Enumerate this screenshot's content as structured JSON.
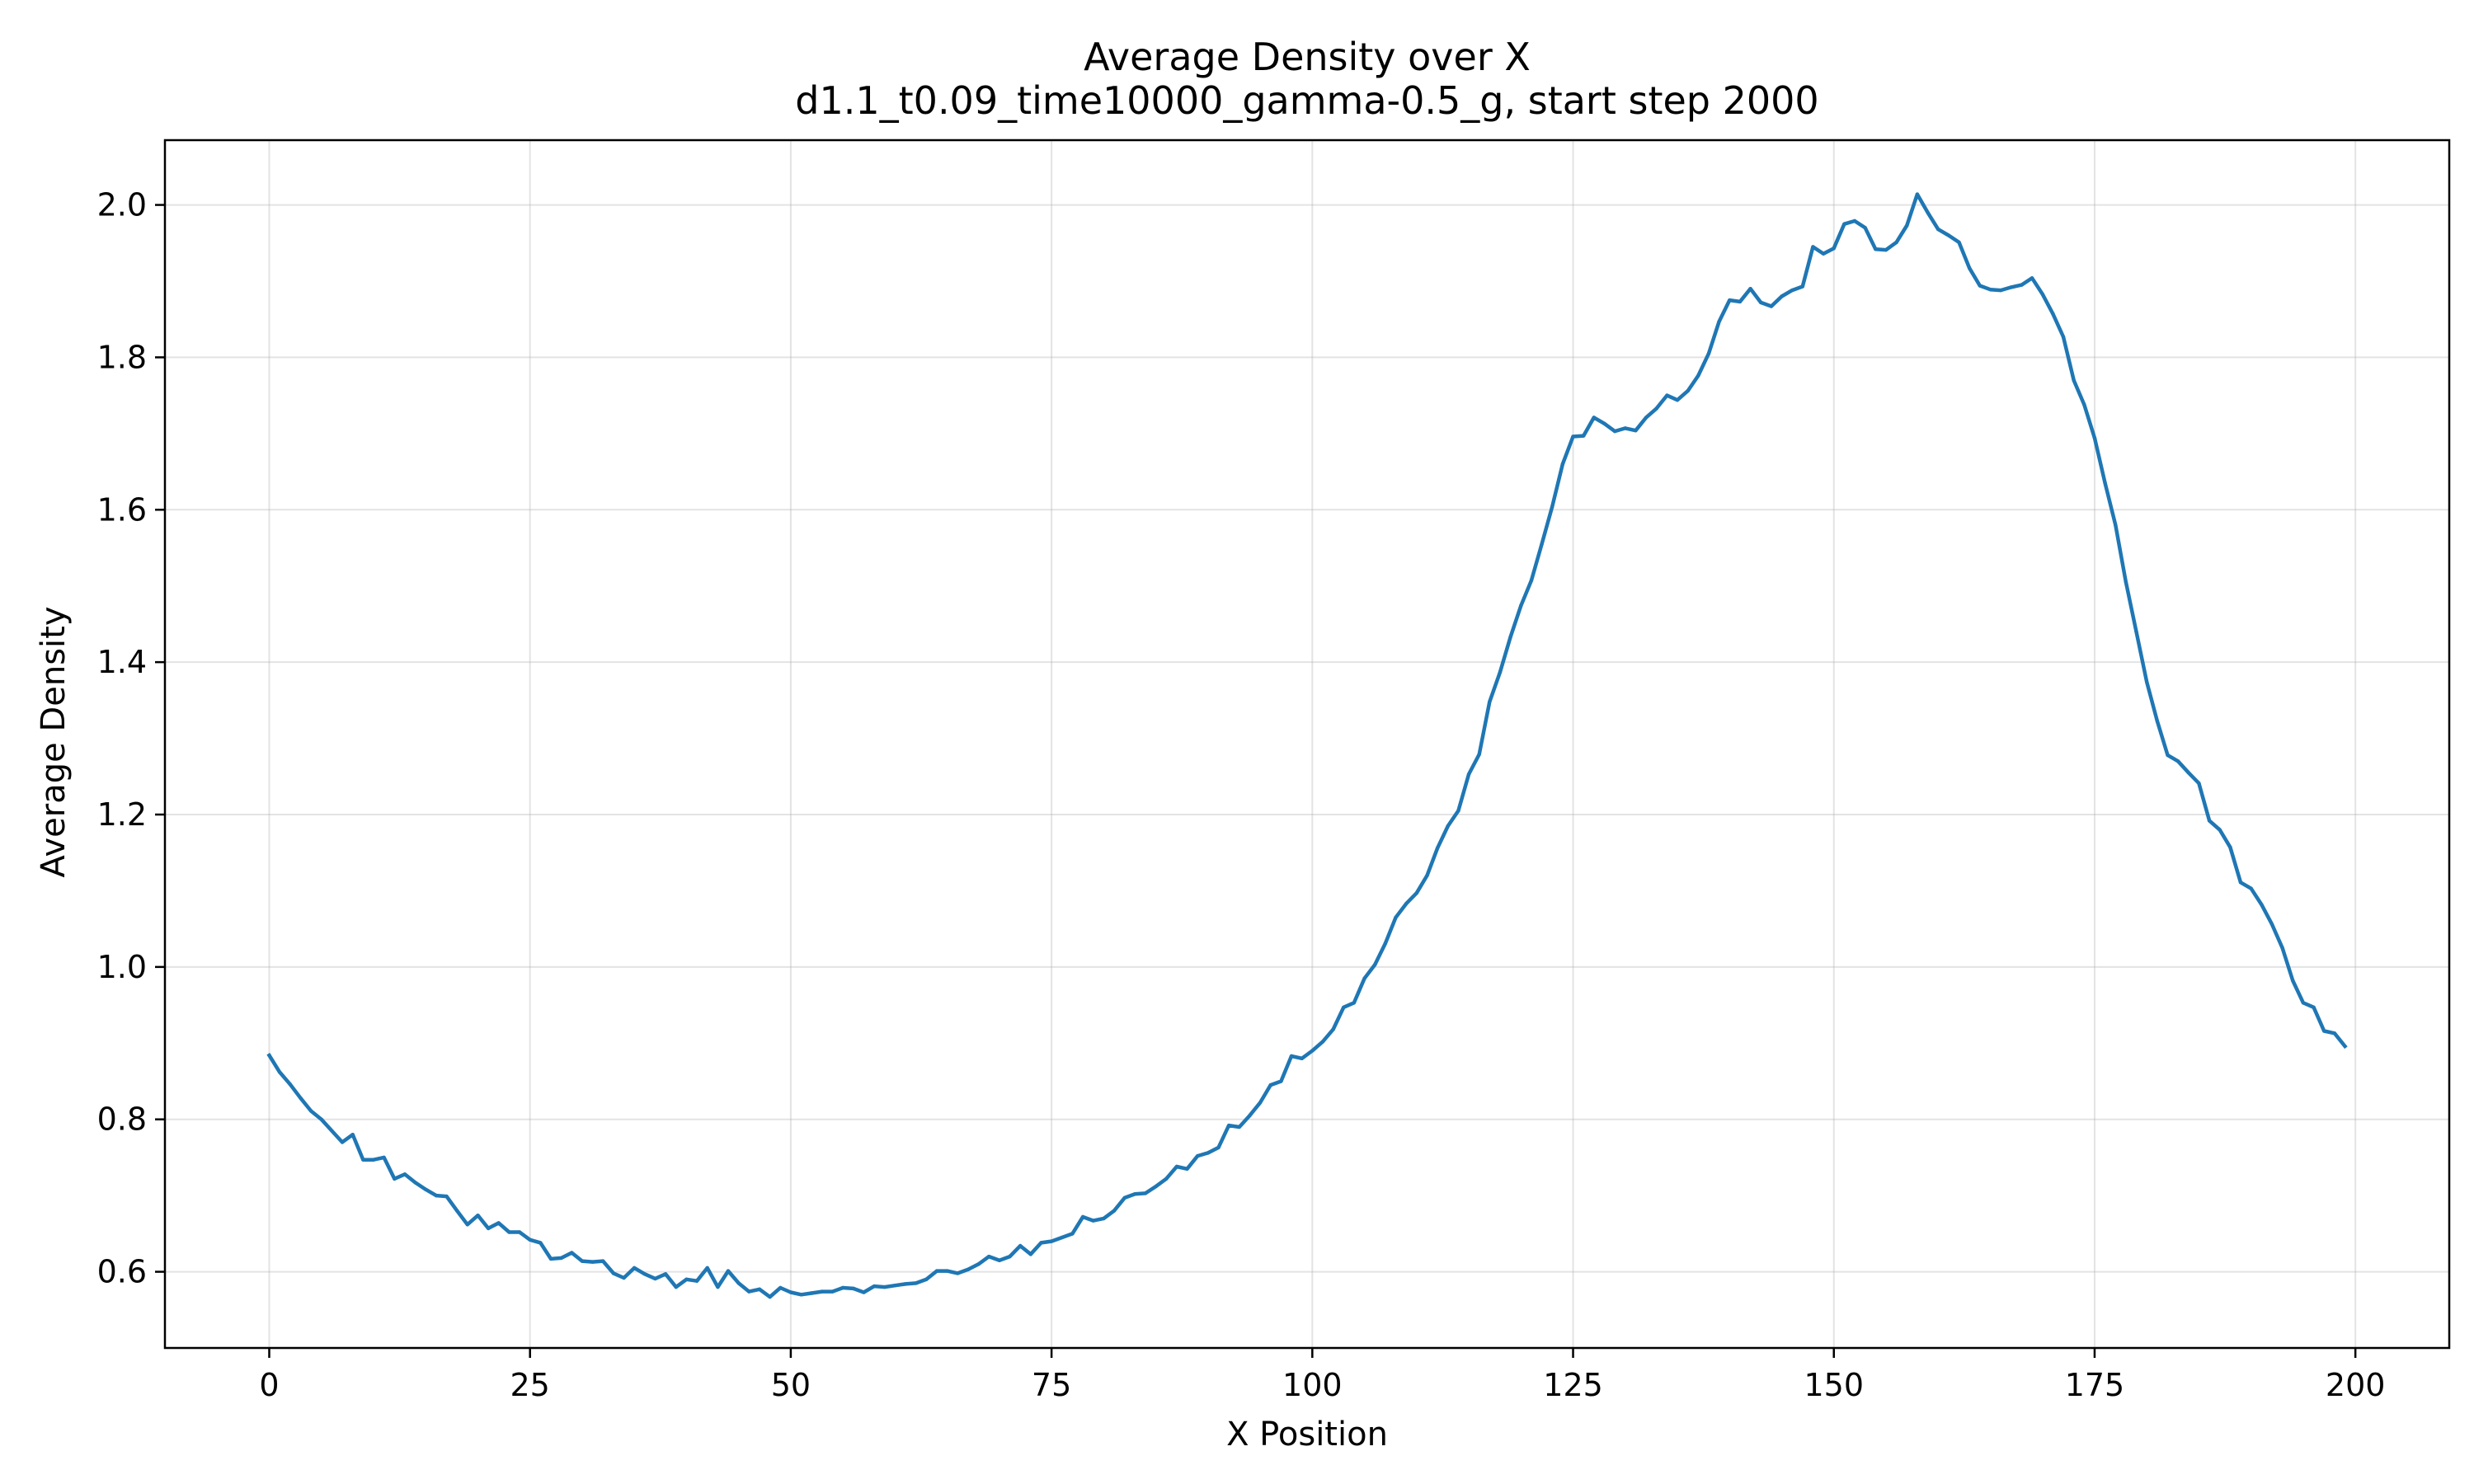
{
  "chart_data": {
    "type": "line",
    "title": "Average Density over X",
    "subtitle": "d1.1_t0.09_time10000_gamma-0.5_g, start step 2000",
    "xlabel": "X Position",
    "ylabel": "Average Density",
    "xlim": [
      -10,
      209
    ],
    "ylim": [
      0.5,
      2.085
    ],
    "xticks": [
      0,
      25,
      50,
      75,
      100,
      125,
      150,
      175,
      200
    ],
    "xtick_labels": [
      "0",
      "25",
      "50",
      "75",
      "100",
      "125",
      "150",
      "175",
      "200"
    ],
    "yticks": [
      0.6,
      0.8,
      1.0,
      1.2,
      1.4,
      1.6,
      1.8,
      2.0
    ],
    "ytick_labels": [
      "0.6",
      "0.8",
      "1.0",
      "1.2",
      "1.4",
      "1.6",
      "1.8",
      "2.0"
    ],
    "grid": true,
    "series": [
      {
        "color": "#1f77b4",
        "x_start": 0,
        "x_step": 1,
        "values": [
          0.884,
          0.862,
          0.846,
          0.828,
          0.811,
          0.8,
          0.785,
          0.77,
          0.78,
          0.747,
          0.747,
          0.75,
          0.722,
          0.728,
          0.717,
          0.708,
          0.7,
          0.699,
          0.68,
          0.662,
          0.674,
          0.657,
          0.664,
          0.652,
          0.652,
          0.642,
          0.638,
          0.617,
          0.618,
          0.625,
          0.614,
          0.613,
          0.614,
          0.598,
          0.592,
          0.605,
          0.597,
          0.591,
          0.597,
          0.58,
          0.59,
          0.588,
          0.605,
          0.58,
          0.601,
          0.585,
          0.574,
          0.577,
          0.567,
          0.579,
          0.573,
          0.57,
          0.572,
          0.574,
          0.574,
          0.579,
          0.578,
          0.573,
          0.581,
          0.58,
          0.582,
          0.584,
          0.585,
          0.59,
          0.601,
          0.601,
          0.598,
          0.603,
          0.61,
          0.62,
          0.615,
          0.62,
          0.634,
          0.623,
          0.638,
          0.64,
          0.645,
          0.65,
          0.672,
          0.667,
          0.67,
          0.68,
          0.697,
          0.702,
          0.703,
          0.712,
          0.722,
          0.738,
          0.735,
          0.752,
          0.756,
          0.763,
          0.792,
          0.79,
          0.805,
          0.822,
          0.845,
          0.85,
          0.883,
          0.88,
          0.89,
          0.902,
          0.918,
          0.947,
          0.953,
          0.985,
          1.003,
          1.031,
          1.065,
          1.083,
          1.097,
          1.12,
          1.156,
          1.185,
          1.205,
          1.253,
          1.279,
          1.348,
          1.387,
          1.433,
          1.474,
          1.507,
          1.555,
          1.604,
          1.66,
          1.696,
          1.697,
          1.721,
          1.713,
          1.703,
          1.707,
          1.704,
          1.721,
          1.733,
          1.75,
          1.744,
          1.756,
          1.776,
          1.805,
          1.847,
          1.875,
          1.873,
          1.89,
          1.872,
          1.867,
          1.88,
          1.888,
          1.893,
          1.945,
          1.936,
          1.943,
          1.975,
          1.979,
          1.97,
          1.942,
          1.941,
          1.951,
          1.973,
          2.014,
          1.99,
          1.968,
          1.96,
          1.951,
          1.917,
          1.894,
          1.889,
          1.888,
          1.892,
          1.895,
          1.904,
          1.883,
          1.857,
          1.827,
          1.77,
          1.738,
          1.694,
          1.635,
          1.58,
          1.505,
          1.44,
          1.374,
          1.323,
          1.278,
          1.27,
          1.255,
          1.241,
          1.192,
          1.18,
          1.157,
          1.111,
          1.103,
          1.082,
          1.056,
          1.025,
          0.982,
          0.953,
          0.947,
          0.916,
          0.913,
          0.896
        ]
      }
    ]
  }
}
